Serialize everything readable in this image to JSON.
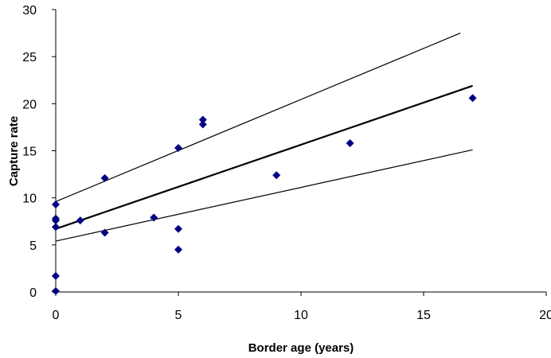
{
  "chart_data": {
    "type": "scatter",
    "title": "",
    "xlabel": "Border age (years)",
    "ylabel": "Capture rate",
    "xlim": [
      0,
      20
    ],
    "ylim": [
      0,
      30
    ],
    "xticks": [
      0,
      5,
      10,
      15,
      20
    ],
    "yticks": [
      0,
      5,
      10,
      15,
      20,
      25,
      30
    ],
    "xtick_labels": [
      "0",
      "5",
      "10",
      "15",
      "20"
    ],
    "ytick_labels": [
      "0",
      "5",
      "10",
      "15",
      "20",
      "25",
      "30"
    ],
    "grid": false,
    "legend": "none",
    "marker": "diamond",
    "marker_color": "#000080",
    "points": [
      {
        "x": 0,
        "y": 9.3
      },
      {
        "x": 0,
        "y": 7.8
      },
      {
        "x": 0,
        "y": 7.6
      },
      {
        "x": 0,
        "y": 6.9
      },
      {
        "x": 0,
        "y": 1.7
      },
      {
        "x": 0,
        "y": 0.1
      },
      {
        "x": 1,
        "y": 7.6
      },
      {
        "x": 2,
        "y": 12.1
      },
      {
        "x": 2,
        "y": 6.3
      },
      {
        "x": 4,
        "y": 7.9
      },
      {
        "x": 5,
        "y": 15.3
      },
      {
        "x": 5,
        "y": 6.7
      },
      {
        "x": 5,
        "y": 4.5
      },
      {
        "x": 6,
        "y": 18.3
      },
      {
        "x": 6,
        "y": 17.8
      },
      {
        "x": 9,
        "y": 12.4
      },
      {
        "x": 12,
        "y": 15.8
      },
      {
        "x": 17,
        "y": 20.6
      }
    ],
    "lines": [
      {
        "x": [
          0,
          17
        ],
        "y": [
          6.7,
          21.9
        ],
        "weight": "bold"
      },
      {
        "x": [
          0,
          16.5
        ],
        "y": [
          9.6,
          27.5
        ],
        "weight": "thin"
      },
      {
        "x": [
          0,
          17
        ],
        "y": [
          5.4,
          15.1
        ],
        "weight": "thin"
      }
    ]
  }
}
